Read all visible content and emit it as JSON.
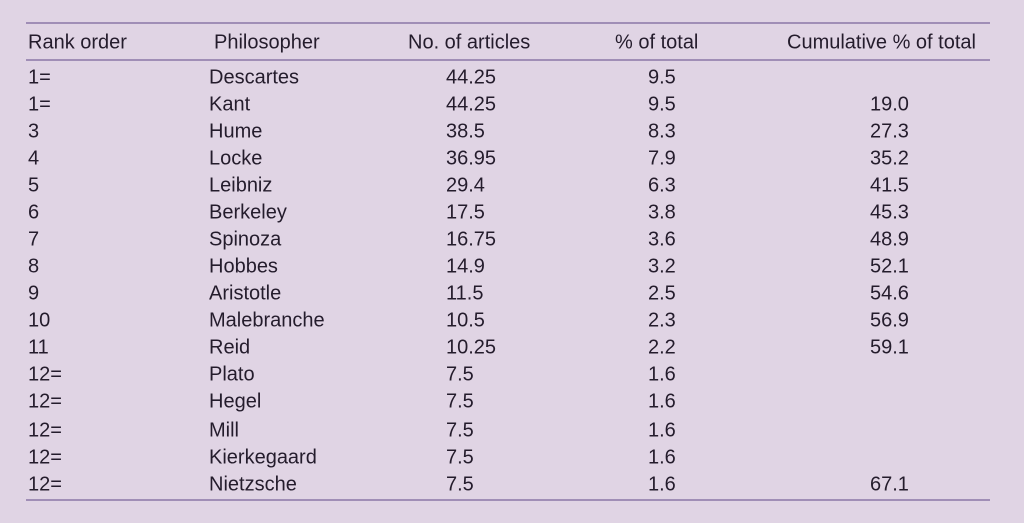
{
  "table": {
    "header": [
      "Rank order",
      "Philosopher",
      "No. of articles",
      "% of total",
      "Cumulative % of total"
    ],
    "rows": [
      [
        "1=",
        "Descartes",
        "44.25",
        "9.5",
        null
      ],
      [
        "1=",
        "Kant",
        "44.25",
        "9.5",
        "19.0"
      ],
      [
        "3",
        "Hume",
        "38.5",
        "8.3",
        "27.3"
      ],
      [
        "4",
        "Locke",
        "36.95",
        "7.9",
        "35.2"
      ],
      [
        "5",
        "Leibniz",
        "29.4",
        "6.3",
        "41.5"
      ],
      [
        "6",
        "Berkeley",
        "17.5",
        "3.8",
        "45.3"
      ],
      [
        "7",
        "Spinoza",
        "16.75",
        "3.6",
        "48.9"
      ],
      [
        "8",
        "Hobbes",
        "14.9",
        "3.2",
        "52.1"
      ],
      [
        "9",
        "Aristotle",
        "11.5",
        "2.5",
        "54.6"
      ],
      [
        "10",
        "Malebranche",
        "10.5",
        "2.3",
        "56.9"
      ],
      [
        "11",
        "Reid",
        "10.25",
        "2.2",
        "59.1"
      ],
      [
        "12=",
        "Plato",
        "7.5",
        "1.6",
        null
      ],
      [
        "12=",
        "Hegel",
        "7.5",
        "1.6",
        null
      ],
      [
        "12=",
        "Mill",
        "7.5",
        "1.6",
        null
      ],
      [
        "12=",
        "Kierkegaard",
        "7.5",
        "1.6",
        null
      ],
      [
        "12=",
        "Nietzsche",
        "7.5",
        "1.6",
        "67.1"
      ]
    ]
  }
}
